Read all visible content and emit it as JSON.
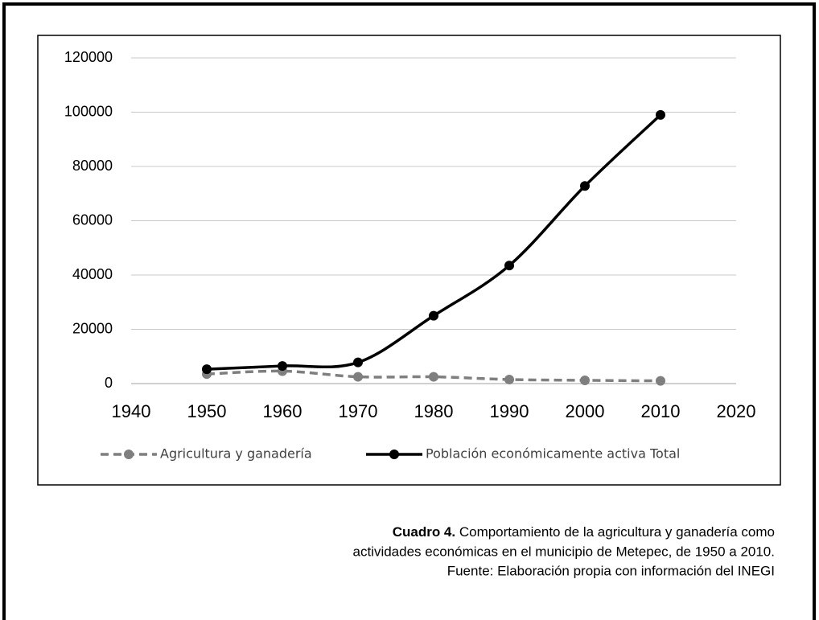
{
  "chart_data": {
    "type": "line",
    "x": [
      1950,
      1960,
      1970,
      1980,
      1990,
      2000,
      2010
    ],
    "series": [
      {
        "name": "Agricultura y ganadería",
        "color": "#7f7f7f",
        "line_style": "dashed",
        "values": [
          3500,
          4600,
          2500,
          2500,
          1500,
          1200,
          1000
        ]
      },
      {
        "name": "Población económicamente activa Total",
        "color": "#000000",
        "line_style": "solid",
        "values": [
          5300,
          6500,
          7800,
          25000,
          43500,
          72800,
          99000
        ]
      }
    ],
    "xlim": [
      1940,
      2020
    ],
    "xticks": [
      1940,
      1950,
      1960,
      1970,
      1980,
      1990,
      2000,
      2010,
      2020
    ],
    "ylim": [
      0,
      120000
    ],
    "yticks": [
      0,
      20000,
      40000,
      60000,
      80000,
      100000,
      120000
    ],
    "grid": true,
    "legend": "bottom"
  },
  "caption": {
    "label": "Cuadro 4.",
    "lines": [
      " Comportamiento de la agricultura y ganadería como",
      "actividades económicas en el municipio de Metepec, de 1950 a 2010.",
      "Fuente: Elaboración propia con información del INEGI"
    ]
  }
}
